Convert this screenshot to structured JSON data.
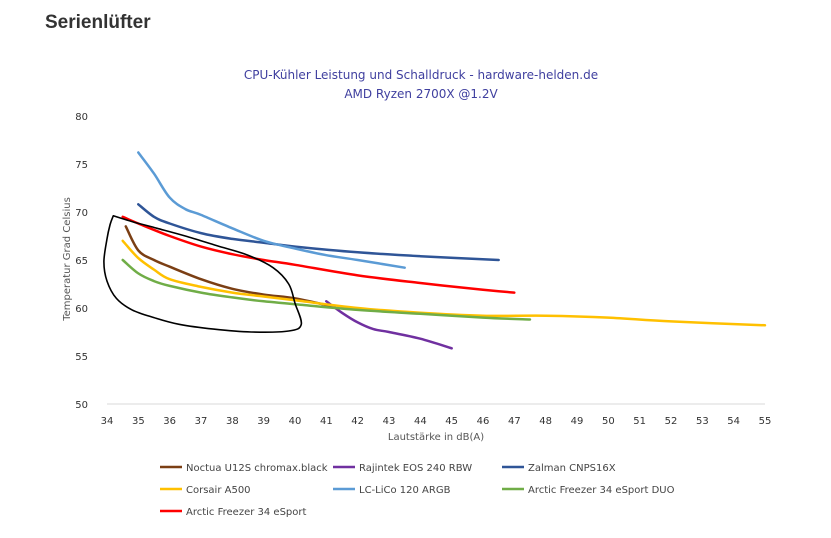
{
  "page": {
    "heading": "Serienlüfter"
  },
  "chart_data": {
    "type": "line",
    "title": "CPU-Kühler Leistung und Schalldruck - hardware-helden.de",
    "subtitle": "AMD Ryzen 2700X @1.2V",
    "xlabel": "Lautstärke in dB(A)",
    "ylabel": "Temperatur Grad Celsius",
    "xlim": [
      34,
      55
    ],
    "ylim": [
      50,
      80
    ],
    "x_ticks": [
      34,
      35,
      36,
      37,
      38,
      39,
      40,
      41,
      42,
      43,
      44,
      45,
      46,
      47,
      48,
      49,
      50,
      51,
      52,
      53,
      54,
      55
    ],
    "y_ticks": [
      50,
      55,
      60,
      65,
      70,
      75,
      80
    ],
    "grid": false,
    "legend_position": "bottom",
    "series": [
      {
        "name": "Noctua U12S chromax.black",
        "color": "#7b3f14",
        "points": [
          [
            34.6,
            68.5
          ],
          [
            35.0,
            66.0
          ],
          [
            35.5,
            65.0
          ],
          [
            36.0,
            64.3
          ],
          [
            37.0,
            63.0
          ],
          [
            38.0,
            62.0
          ],
          [
            39.0,
            61.4
          ],
          [
            40.0,
            61.0
          ],
          [
            41.0,
            60.3
          ],
          [
            41.3,
            60.0
          ]
        ]
      },
      {
        "name": "Rajintek EOS 240 RBW",
        "color": "#7030a0",
        "points": [
          [
            41.0,
            60.7
          ],
          [
            41.5,
            59.5
          ],
          [
            42.0,
            58.5
          ],
          [
            42.5,
            57.8
          ],
          [
            43.0,
            57.5
          ],
          [
            44.0,
            56.8
          ],
          [
            45.0,
            55.8
          ]
        ]
      },
      {
        "name": "Zalman CNPS16X",
        "color": "#2f5597",
        "points": [
          [
            35.0,
            70.8
          ],
          [
            35.5,
            69.5
          ],
          [
            36.0,
            68.8
          ],
          [
            37.0,
            67.8
          ],
          [
            38.0,
            67.2
          ],
          [
            39.0,
            66.8
          ],
          [
            40.0,
            66.4
          ],
          [
            42.0,
            65.8
          ],
          [
            44.0,
            65.4
          ],
          [
            46.5,
            65.0
          ]
        ]
      },
      {
        "name": "Corsair A500",
        "color": "#ffc000",
        "points": [
          [
            34.5,
            67.0
          ],
          [
            35.0,
            65.2
          ],
          [
            35.5,
            64.0
          ],
          [
            36.0,
            63.0
          ],
          [
            37.0,
            62.2
          ],
          [
            38.0,
            61.6
          ],
          [
            39.0,
            61.2
          ],
          [
            40.0,
            60.8
          ],
          [
            42.0,
            60.0
          ],
          [
            44.0,
            59.5
          ],
          [
            46.0,
            59.2
          ],
          [
            48.0,
            59.2
          ],
          [
            50.0,
            59.0
          ],
          [
            52.0,
            58.6
          ],
          [
            55.0,
            58.2
          ]
        ]
      },
      {
        "name": "LC-LiCo 120 ARGB",
        "color": "#5b9bd5",
        "points": [
          [
            35.0,
            76.2
          ],
          [
            35.5,
            74.0
          ],
          [
            36.0,
            71.5
          ],
          [
            36.5,
            70.3
          ],
          [
            37.0,
            69.7
          ],
          [
            38.0,
            68.3
          ],
          [
            39.0,
            67.0
          ],
          [
            40.0,
            66.2
          ],
          [
            41.0,
            65.5
          ],
          [
            42.0,
            65.0
          ],
          [
            43.5,
            64.2
          ]
        ]
      },
      {
        "name": "Arctic Freezer 34 eSport DUO",
        "color": "#70ad47",
        "points": [
          [
            34.5,
            65.0
          ],
          [
            35.0,
            63.6
          ],
          [
            35.5,
            62.8
          ],
          [
            36.0,
            62.3
          ],
          [
            37.0,
            61.6
          ],
          [
            38.0,
            61.1
          ],
          [
            39.0,
            60.7
          ],
          [
            40.0,
            60.4
          ],
          [
            42.0,
            59.8
          ],
          [
            44.0,
            59.4
          ],
          [
            46.0,
            59.0
          ],
          [
            47.5,
            58.8
          ]
        ]
      },
      {
        "name": "Arctic Freezer 34 eSport",
        "color": "#ff0000",
        "points": [
          [
            34.5,
            69.5
          ],
          [
            35.0,
            68.8
          ],
          [
            36.0,
            67.5
          ],
          [
            37.0,
            66.4
          ],
          [
            38.0,
            65.6
          ],
          [
            39.0,
            65.0
          ],
          [
            40.0,
            64.5
          ],
          [
            42.0,
            63.4
          ],
          [
            44.0,
            62.6
          ],
          [
            46.0,
            61.9
          ],
          [
            47.0,
            61.6
          ]
        ]
      }
    ],
    "annotation": {
      "type": "hand-drawn-loop",
      "color": "#000000",
      "points": [
        [
          34.2,
          69.6
        ],
        [
          34.8,
          69.0
        ],
        [
          35.6,
          68.3
        ],
        [
          36.5,
          67.5
        ],
        [
          37.5,
          66.5
        ],
        [
          38.5,
          65.5
        ],
        [
          39.3,
          64.2
        ],
        [
          39.8,
          62.5
        ],
        [
          40.0,
          60.5
        ],
        [
          40.2,
          58.3
        ],
        [
          39.8,
          57.6
        ],
        [
          38.6,
          57.5
        ],
        [
          37.4,
          57.8
        ],
        [
          36.3,
          58.3
        ],
        [
          35.5,
          59.0
        ],
        [
          34.8,
          59.8
        ],
        [
          34.3,
          61.0
        ],
        [
          34.0,
          62.8
        ],
        [
          33.9,
          64.8
        ],
        [
          34.0,
          67.2
        ],
        [
          34.1,
          68.7
        ],
        [
          34.2,
          69.6
        ]
      ]
    }
  }
}
